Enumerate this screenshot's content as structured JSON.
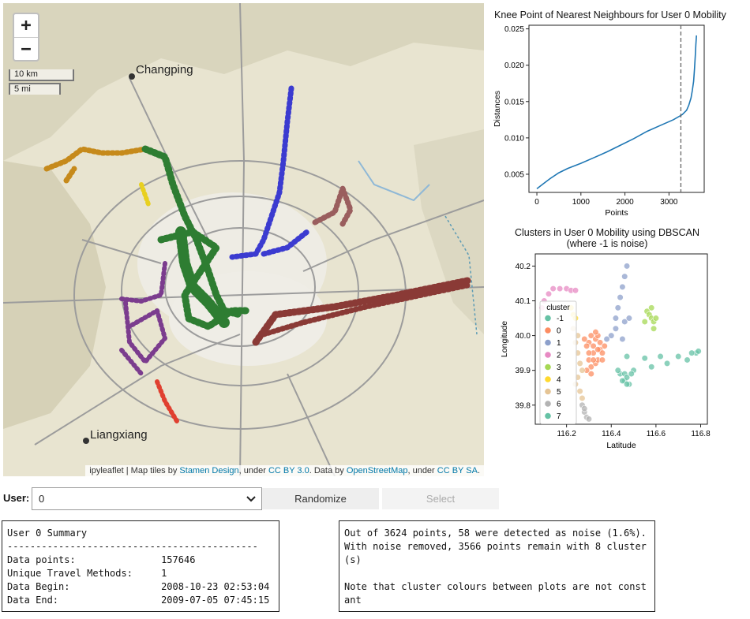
{
  "map": {
    "zoom_in": "+",
    "zoom_out": "−",
    "scale_km": "10 km",
    "scale_mi": "5 mi",
    "places": {
      "changping": "Changping",
      "liangxiang": "Liangxiang"
    },
    "attribution": {
      "prefix": "ipyleaflet | Map tiles by ",
      "stamen": "Stamen Design",
      "under1": ", under ",
      "cc30": "CC BY 3.0",
      "data_by": ". Data by ",
      "osm": "OpenStreetMap",
      "under2": ", under ",
      "ccbysa": "CC BY SA",
      "end": "."
    }
  },
  "knee_plot": {
    "title": "Knee Point of Nearest Neighbours for User 0 Mobility",
    "chart_data": {
      "type": "line",
      "title": "Knee Point of Nearest Neighbours for User 0 Mobility",
      "xlabel": "Points",
      "ylabel": "Distances",
      "xlim": [
        -180,
        3800
      ],
      "ylim": [
        0.0025,
        0.0255
      ],
      "xticks": [
        0,
        1000,
        2000,
        3000
      ],
      "yticks": [
        0.005,
        0.01,
        0.015,
        0.02,
        0.025
      ],
      "ytick_labels": [
        "0.005",
        "0.010",
        "0.015",
        "0.020",
        "0.025"
      ],
      "knee_x": 3270,
      "series": [
        {
          "color": "#1f77b4",
          "x": [
            0,
            150,
            300,
            500,
            700,
            1000,
            1300,
            1600,
            1900,
            2200,
            2500,
            2800,
            3100,
            3300,
            3400,
            3450,
            3500,
            3530,
            3560,
            3580,
            3600,
            3610,
            3624
          ],
          "y": [
            0.003,
            0.0037,
            0.0044,
            0.0052,
            0.0058,
            0.0065,
            0.0073,
            0.0081,
            0.009,
            0.0099,
            0.0109,
            0.0117,
            0.0125,
            0.0132,
            0.0138,
            0.0145,
            0.0155,
            0.0165,
            0.0178,
            0.0195,
            0.0215,
            0.0228,
            0.0241
          ]
        }
      ]
    }
  },
  "cluster_plot": {
    "title_line1": "Clusters in User 0 Mobility using DBSCAN",
    "title_line2": "(where -1 is noise)",
    "chart_data": {
      "type": "scatter",
      "title": "Clusters in User 0 Mobility using DBSCAN (where -1 is noise)",
      "xlabel": "Latitude",
      "ylabel": "Longitude",
      "xlim": [
        116.06,
        116.83
      ],
      "ylim": [
        39.745,
        40.235
      ],
      "xticks": [
        116.2,
        116.4,
        116.6,
        116.8
      ],
      "xtick_labels": [
        "116.2",
        "116.4",
        "116.6",
        "116.8"
      ],
      "yticks": [
        39.8,
        39.9,
        40.0,
        40.1,
        40.2
      ],
      "ytick_labels": [
        "39.8",
        "39.9",
        "40.0",
        "40.1",
        "40.2"
      ],
      "legend": {
        "title": "cluster",
        "placement": "left"
      },
      "series": [
        {
          "name": "-1",
          "color": "#66c2a5",
          "points": [
            [
              116.47,
              39.94
            ],
            [
              116.55,
              39.935
            ],
            [
              116.62,
              39.94
            ],
            [
              116.7,
              39.94
            ],
            [
              116.78,
              39.95
            ],
            [
              116.79,
              39.955
            ],
            [
              116.44,
              39.89
            ],
            [
              116.46,
              39.87
            ],
            [
              116.48,
              39.86
            ],
            [
              116.43,
              39.9
            ],
            [
              116.5,
              39.9
            ],
            [
              116.58,
              39.91
            ],
            [
              116.65,
              39.92
            ],
            [
              116.74,
              39.93
            ],
            [
              116.76,
              39.95
            ]
          ]
        },
        {
          "name": "0",
          "color": "#fc8d62",
          "points": [
            [
              116.3,
              39.98
            ],
            [
              116.31,
              40.0
            ],
            [
              116.32,
              39.97
            ],
            [
              116.33,
              39.99
            ],
            [
              116.34,
              40.0
            ],
            [
              116.35,
              39.96
            ],
            [
              116.32,
              39.95
            ],
            [
              116.3,
              39.93
            ],
            [
              116.31,
              39.91
            ],
            [
              116.33,
              39.92
            ],
            [
              116.34,
              39.93
            ],
            [
              116.36,
              39.95
            ],
            [
              116.35,
              39.98
            ],
            [
              116.29,
              39.97
            ],
            [
              116.28,
              39.99
            ],
            [
              116.33,
              40.01
            ],
            [
              116.36,
              39.93
            ],
            [
              116.37,
              39.97
            ],
            [
              116.3,
              39.95
            ],
            [
              116.34,
              39.96
            ],
            [
              116.32,
              39.93
            ],
            [
              116.31,
              39.89
            ],
            [
              116.29,
              39.9
            ]
          ]
        },
        {
          "name": "1",
          "color": "#8da0cb",
          "points": [
            [
              116.47,
              40.2
            ],
            [
              116.46,
              40.17
            ],
            [
              116.45,
              40.14
            ],
            [
              116.44,
              40.11
            ],
            [
              116.43,
              40.08
            ],
            [
              116.42,
              40.05
            ],
            [
              116.42,
              40.02
            ],
            [
              116.4,
              40.0
            ],
            [
              116.38,
              39.99
            ],
            [
              116.46,
              40.04
            ],
            [
              116.48,
              40.05
            ],
            [
              116.45,
              39.99
            ]
          ]
        },
        {
          "name": "2",
          "color": "#e78ac3",
          "points": [
            [
              116.1,
              40.1
            ],
            [
              116.12,
              40.12
            ],
            [
              116.14,
              40.135
            ],
            [
              116.17,
              40.135
            ],
            [
              116.2,
              40.135
            ],
            [
              116.22,
              40.13
            ],
            [
              116.24,
              40.13
            ],
            [
              116.09,
              40.08
            ]
          ]
        },
        {
          "name": "3",
          "color": "#a6d854",
          "points": [
            [
              116.56,
              40.07
            ],
            [
              116.57,
              40.06
            ],
            [
              116.58,
              40.05
            ],
            [
              116.59,
              40.04
            ],
            [
              116.6,
              40.05
            ],
            [
              116.55,
              40.04
            ],
            [
              116.58,
              40.08
            ],
            [
              116.59,
              40.02
            ]
          ]
        },
        {
          "name": "4",
          "color": "#ffd92f",
          "points": [
            [
              116.22,
              40.08
            ],
            [
              116.23,
              40.06
            ],
            [
              116.24,
              40.05
            ]
          ]
        },
        {
          "name": "5",
          "color": "#e5c494",
          "points": [
            [
              116.24,
              39.98
            ],
            [
              116.25,
              39.95
            ],
            [
              116.26,
              39.92
            ],
            [
              116.27,
              39.9
            ],
            [
              116.25,
              39.88
            ],
            [
              116.24,
              39.86
            ],
            [
              116.26,
              39.84
            ],
            [
              116.27,
              39.82
            ],
            [
              116.25,
              40.0
            ],
            [
              116.23,
              40.02
            ]
          ]
        },
        {
          "name": "6",
          "color": "#b3b3b3",
          "points": [
            [
              116.27,
              39.8
            ],
            [
              116.28,
              39.78
            ],
            [
              116.29,
              39.765
            ],
            [
              116.28,
              39.79
            ],
            [
              116.3,
              39.76
            ]
          ]
        },
        {
          "name": "7",
          "color": "#66c2a5",
          "points": [
            [
              116.46,
              39.89
            ],
            [
              116.47,
              39.88
            ],
            [
              116.45,
              39.87
            ],
            [
              116.49,
              39.89
            ],
            [
              116.47,
              39.86
            ]
          ]
        }
      ]
    }
  },
  "controls": {
    "user_label": "User:",
    "user_value": "0",
    "randomize": "Randomize",
    "select": "Select"
  },
  "summary": {
    "text": "User 0 Summary\n--------------------------------------------\nData points:               157646\nUnique Travel Methods:     1\nData Begin:                2008-10-23 02:53:04\nData End:                  2009-07-05 07:45:15"
  },
  "noise": {
    "text": "Out of 3624 points, 58 were detected as noise (1.6%). With noise removed, 3566 points remain with 8 cluster(s)\n\nNote that cluster colours between plots are not constant"
  }
}
